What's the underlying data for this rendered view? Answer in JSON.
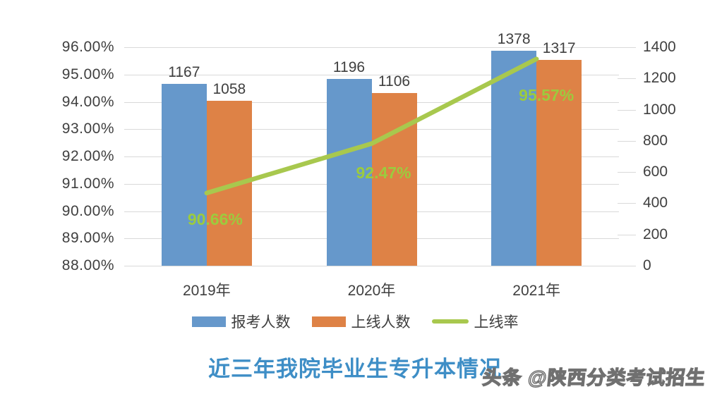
{
  "title": "近三年我院毕业生专升本情况",
  "watermark": {
    "text": "头条 @陕西分类考试招生"
  },
  "colors": {
    "bar_applicants": "#6698cb",
    "bar_passed": "#de8246",
    "line_rate": "#a8c84e",
    "rate_label": "#9ccb3e",
    "axis_text": "#3f3f3f",
    "gridline": "#d9d9d9",
    "title_text": "#3e8ec6"
  },
  "chart_data": {
    "type": "bar",
    "subtype": "grouped-bars-with-line-combo",
    "title": "近三年我院毕业生专升本情况",
    "categories": [
      "2019年",
      "2020年",
      "2021年"
    ],
    "series": [
      {
        "name": "报考人数",
        "type": "bar",
        "axis": "right",
        "color": "#6698cb",
        "values": [
          1167,
          1196,
          1378
        ]
      },
      {
        "name": "上线人数",
        "type": "bar",
        "axis": "right",
        "color": "#de8246",
        "values": [
          1058,
          1106,
          1317
        ]
      },
      {
        "name": "上线率",
        "type": "line",
        "axis": "left",
        "color": "#a8c84e",
        "values": [
          90.66,
          92.47,
          95.57
        ],
        "labels": [
          "90.66%",
          "92.47%",
          "95.57%"
        ]
      }
    ],
    "left_axis": {
      "format": "percent",
      "min": 88,
      "max": 96,
      "step": 1,
      "tick_labels": [
        "96.00%",
        "95.00%",
        "94.00%",
        "93.00%",
        "92.00%",
        "91.00%",
        "90.00%",
        "89.00%",
        "88.00%"
      ]
    },
    "right_axis": {
      "format": "number",
      "min": 0,
      "max": 1400,
      "step": 200,
      "tick_labels": [
        "1400",
        "1200",
        "1000",
        "800",
        "600",
        "400",
        "200",
        "0"
      ]
    },
    "grid": true,
    "legend_position": "bottom"
  }
}
